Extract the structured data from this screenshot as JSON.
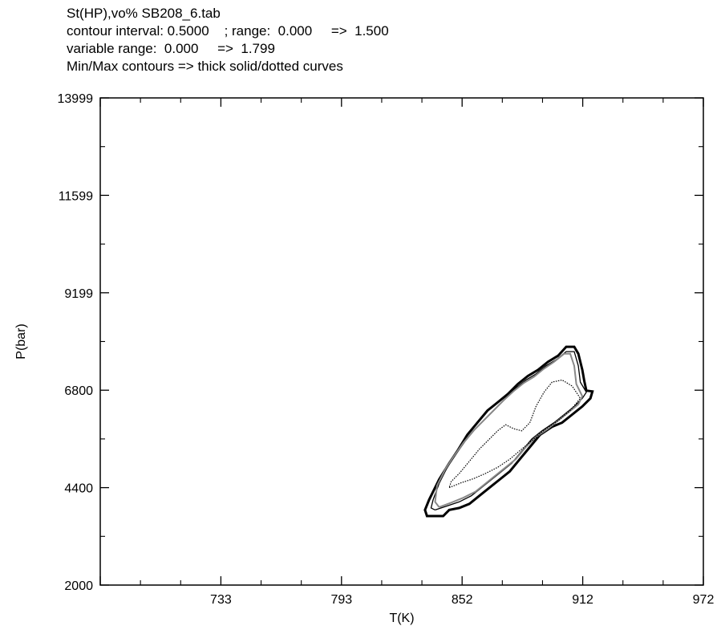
{
  "header": {
    "line1": "St(HP),vo% SB208_6.tab",
    "line2": "contour interval: 0.5000    ; range:  0.000     =>  1.500",
    "line3": "variable range:  0.000     =>  1.799",
    "line4": "Min/Max contours => thick solid/dotted curves"
  },
  "chart_data": {
    "type": "contour",
    "xlabel": "T(K)",
    "ylabel": "P(bar)",
    "xlim": [
      673,
      972
    ],
    "ylim": [
      2000,
      13999
    ],
    "x_ticks": [
      "733",
      "793",
      "852",
      "912",
      "972"
    ],
    "y_ticks": [
      "2000",
      "4400",
      "6800",
      "9199",
      "11599",
      "13999"
    ],
    "contour_interval": 0.5,
    "contour_range": [
      0.0,
      1.5
    ],
    "variable_range": [
      0.0,
      1.799
    ],
    "contours": [
      {
        "level": 0.0,
        "style": "thick-solid",
        "color": "#000000",
        "points": [
          [
            839,
            3700
          ],
          [
            843,
            3700
          ],
          [
            846,
            3850
          ],
          [
            851,
            3900
          ],
          [
            856,
            4000
          ],
          [
            861,
            4200
          ],
          [
            866,
            4400
          ],
          [
            871,
            4600
          ],
          [
            876,
            4800
          ],
          [
            881,
            5100
          ],
          [
            886,
            5400
          ],
          [
            891,
            5700
          ],
          [
            897,
            5900
          ],
          [
            902,
            6000
          ],
          [
            907,
            6200
          ],
          [
            912,
            6400
          ],
          [
            916,
            6600
          ],
          [
            917,
            6770
          ],
          [
            914,
            6790
          ],
          [
            913,
            7020
          ],
          [
            912,
            7300
          ],
          [
            910,
            7700
          ],
          [
            908,
            7870
          ],
          [
            904,
            7870
          ],
          [
            900,
            7650
          ],
          [
            895,
            7500
          ],
          [
            890,
            7300
          ],
          [
            885,
            7150
          ],
          [
            880,
            6950
          ],
          [
            875,
            6700
          ],
          [
            870,
            6500
          ],
          [
            865,
            6300
          ],
          [
            860,
            6000
          ],
          [
            855,
            5700
          ],
          [
            850,
            5300
          ],
          [
            846,
            5000
          ],
          [
            841,
            4600
          ],
          [
            836,
            4100
          ],
          [
            834,
            3850
          ],
          [
            835,
            3700
          ],
          [
            839,
            3700
          ]
        ]
      },
      {
        "level": 0.5,
        "style": "solid",
        "color": "#000000",
        "points": [
          [
            839,
            3850
          ],
          [
            845,
            3950
          ],
          [
            851,
            4050
          ],
          [
            857,
            4200
          ],
          [
            862,
            4400
          ],
          [
            867,
            4600
          ],
          [
            872,
            4800
          ],
          [
            877,
            5000
          ],
          [
            882,
            5300
          ],
          [
            887,
            5600
          ],
          [
            892,
            5800
          ],
          [
            898,
            6000
          ],
          [
            903,
            6200
          ],
          [
            908,
            6400
          ],
          [
            912,
            6600
          ],
          [
            914,
            6750
          ],
          [
            911,
            7000
          ],
          [
            910,
            7400
          ],
          [
            908,
            7750
          ],
          [
            904,
            7750
          ],
          [
            899,
            7550
          ],
          [
            894,
            7400
          ],
          [
            889,
            7200
          ],
          [
            884,
            7050
          ],
          [
            879,
            6850
          ],
          [
            874,
            6600
          ],
          [
            869,
            6350
          ],
          [
            864,
            6100
          ],
          [
            859,
            5850
          ],
          [
            854,
            5550
          ],
          [
            849,
            5200
          ],
          [
            845,
            4900
          ],
          [
            841,
            4500
          ],
          [
            838,
            4100
          ],
          [
            837,
            3900
          ],
          [
            839,
            3850
          ]
        ]
      },
      {
        "level": 1.0,
        "style": "gray",
        "color": "#888888",
        "points": [
          [
            841,
            3920
          ],
          [
            847,
            4030
          ],
          [
            853,
            4150
          ],
          [
            859,
            4300
          ],
          [
            864,
            4500
          ],
          [
            869,
            4700
          ],
          [
            874,
            4900
          ],
          [
            879,
            5100
          ],
          [
            884,
            5400
          ],
          [
            889,
            5650
          ],
          [
            895,
            5850
          ],
          [
            900,
            6050
          ],
          [
            905,
            6250
          ],
          [
            910,
            6450
          ],
          [
            912,
            6650
          ],
          [
            909,
            6950
          ],
          [
            908,
            7400
          ],
          [
            906,
            7700
          ],
          [
            903,
            7700
          ],
          [
            898,
            7500
          ],
          [
            893,
            7330
          ],
          [
            888,
            7130
          ],
          [
            883,
            6980
          ],
          [
            878,
            6780
          ],
          [
            873,
            6550
          ],
          [
            868,
            6300
          ],
          [
            863,
            6050
          ],
          [
            858,
            5800
          ],
          [
            853,
            5500
          ],
          [
            848,
            5150
          ],
          [
            844,
            4850
          ],
          [
            840,
            4450
          ],
          [
            839,
            4050
          ],
          [
            841,
            3920
          ]
        ]
      },
      {
        "level": 1.5,
        "style": "dotted",
        "color": "#000000",
        "points": [
          [
            846,
            4400
          ],
          [
            852,
            4520
          ],
          [
            858,
            4620
          ],
          [
            864,
            4750
          ],
          [
            870,
            4900
          ],
          [
            876,
            5100
          ],
          [
            882,
            5350
          ],
          [
            888,
            5600
          ],
          [
            894,
            5850
          ],
          [
            900,
            6050
          ],
          [
            906,
            6300
          ],
          [
            911,
            6600
          ],
          [
            907,
            6900
          ],
          [
            902,
            7050
          ],
          [
            897,
            7000
          ],
          [
            893,
            6750
          ],
          [
            889,
            6400
          ],
          [
            886,
            6000
          ],
          [
            882,
            5800
          ],
          [
            878,
            5850
          ],
          [
            874,
            5950
          ],
          [
            870,
            5800
          ],
          [
            866,
            5600
          ],
          [
            861,
            5350
          ],
          [
            856,
            5050
          ],
          [
            851,
            4750
          ],
          [
            847,
            4550
          ],
          [
            846,
            4400
          ]
        ]
      }
    ]
  }
}
